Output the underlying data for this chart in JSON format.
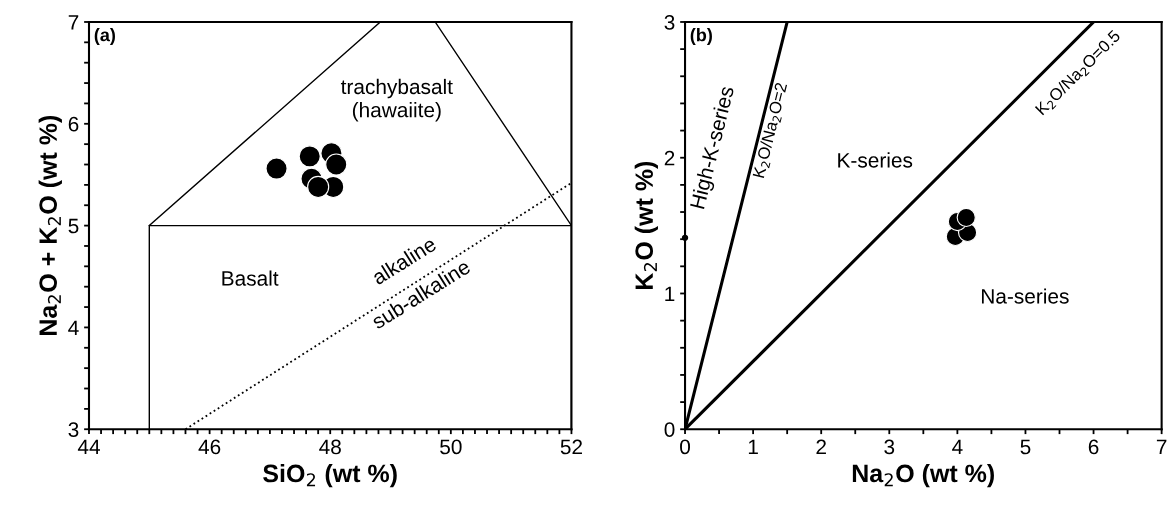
{
  "chart_data": [
    {
      "type": "scatter",
      "xlabel": "SiO$_{2}$ (wt %)",
      "ylabel": "Na$_{2}$O + K$_{2}$O (wt %)",
      "xlim": [
        44,
        52
      ],
      "ylim": [
        3,
        7
      ],
      "xticks": [
        44,
        {
          "value": 44.2,
          "label": null
        },
        {
          "value": 44.4,
          "label": null
        },
        {
          "value": 44.6,
          "label": null
        },
        {
          "value": 44.8,
          "label": null
        },
        {
          "value": 45,
          "label": null
        },
        {
          "value": 45.2,
          "label": null
        },
        {
          "value": 45.4,
          "label": null
        },
        {
          "value": 45.6,
          "label": null
        },
        {
          "value": 45.8,
          "label": null
        },
        46,
        {
          "value": 46.2,
          "label": null
        },
        {
          "value": 46.4,
          "label": null
        },
        {
          "value": 46.6,
          "label": null
        },
        {
          "value": 46.8,
          "label": null
        },
        {
          "value": 47,
          "label": null
        },
        {
          "value": 47.2,
          "label": null
        },
        {
          "value": 47.4,
          "label": null
        },
        {
          "value": 47.6,
          "label": null
        },
        {
          "value": 47.8,
          "label": null
        },
        48,
        {
          "value": 48.2,
          "label": null
        },
        {
          "value": 48.4,
          "label": null
        },
        {
          "value": 48.6,
          "label": null
        },
        {
          "value": 48.8,
          "label": null
        },
        {
          "value": 49,
          "label": null
        },
        {
          "value": 49.2,
          "label": null
        },
        {
          "value": 49.4,
          "label": null
        },
        {
          "value": 49.6,
          "label": null
        },
        {
          "value": 49.8,
          "label": null
        },
        50,
        {
          "value": 50.2,
          "label": null
        },
        {
          "value": 50.4,
          "label": null
        },
        {
          "value": 50.6,
          "label": null
        },
        {
          "value": 50.8,
          "label": null
        },
        {
          "value": 51,
          "label": null
        },
        {
          "value": 51.2,
          "label": null
        },
        {
          "value": 51.4,
          "label": null
        },
        {
          "value": 51.6,
          "label": null
        },
        {
          "value": 51.8,
          "label": null
        },
        52
      ],
      "yticks": [
        3,
        {
          "value": 3.2,
          "label": null
        },
        {
          "value": 3.4,
          "label": null
        },
        {
          "value": 3.6,
          "label": null
        },
        {
          "value": 3.8,
          "label": null
        },
        4,
        {
          "value": 4.2,
          "label": null
        },
        {
          "value": 4.4,
          "label": null
        },
        {
          "value": 4.6,
          "label": null
        },
        {
          "value": 4.8,
          "label": null
        },
        5,
        {
          "value": 5.2,
          "label": null
        },
        {
          "value": 5.4,
          "label": null
        },
        {
          "value": 5.6,
          "label": null
        },
        {
          "value": 5.8,
          "label": null
        },
        6,
        {
          "value": 6.2,
          "label": null
        },
        {
          "value": 6.4,
          "label": null
        },
        {
          "value": 6.6,
          "label": null
        },
        {
          "value": 6.8,
          "label": null
        },
        7
      ],
      "series": [
        {
          "type": "line",
          "color": "#000000",
          "line_style": "solid",
          "x": [
            45,
            45,
            52,
            52
          ],
          "values": [
            3,
            5,
            5,
            3
          ]
        },
        {
          "type": "line",
          "color": "#000000",
          "line_style": "solid",
          "x": [
            45,
            48.83,
            49.74,
            52
          ],
          "values": [
            5,
            7,
            7,
            5
          ]
        },
        {
          "type": "line",
          "color": "#000000",
          "line_style": "dotted",
          "x": [
            45.6,
            52
          ],
          "values": [
            3,
            5.42
          ]
        },
        {
          "color": "#000000",
          "marker": "circle",
          "x": [
            47.11,
            47.66,
            48.02,
            48.1,
            47.69,
            48.05,
            47.8
          ],
          "values": [
            5.56,
            5.68,
            5.71,
            5.6,
            5.46,
            5.38,
            5.38
          ]
        }
      ],
      "annotations": [
        "(a)",
        "trachybasalt\n(hawaiite)",
        "Basalt",
        "alkaline",
        "sub-alkaline"
      ]
    },
    {
      "type": "scatter",
      "xlabel": "Na$_{2}$O (wt %)",
      "ylabel": "K$_{2}$O (wt %)",
      "xlim": [
        0,
        7
      ],
      "ylim": [
        0,
        3
      ],
      "xticks": [
        0,
        {
          "value": 0.5,
          "label": null
        },
        1,
        {
          "value": 1.5,
          "label": null
        },
        2,
        {
          "value": 2.5,
          "label": null
        },
        3,
        {
          "value": 3.5,
          "label": null
        },
        4,
        {
          "value": 4.5,
          "label": null
        },
        5,
        {
          "value": 5.5,
          "label": null
        },
        6,
        {
          "value": 6.5,
          "label": null
        },
        7
      ],
      "yticks": [
        0,
        {
          "value": 0.2,
          "label": null
        },
        {
          "value": 0.4,
          "label": null
        },
        {
          "value": 0.6,
          "label": null
        },
        {
          "value": 0.8,
          "label": null
        },
        1,
        {
          "value": 1.2,
          "label": null
        },
        {
          "value": 1.4,
          "label": null
        },
        {
          "value": 1.6,
          "label": null
        },
        {
          "value": 1.8,
          "label": null
        },
        2,
        {
          "value": 2.2,
          "label": null
        },
        {
          "value": 2.4,
          "label": null
        },
        {
          "value": 2.6,
          "label": null
        },
        {
          "value": 2.8,
          "label": null
        },
        3
      ],
      "series": [
        {
          "type": "line",
          "color": "#000000",
          "line_style": "solid",
          "x": [
            0,
            1.5
          ],
          "values": [
            0,
            3
          ]
        },
        {
          "type": "line",
          "color": "#000000",
          "line_style": "solid",
          "x": [
            0,
            6
          ],
          "values": [
            0,
            3
          ]
        },
        {
          "color": "#000000",
          "marker": "circle",
          "x": [
            3.97,
            4.15,
            4.0,
            4.13
          ],
          "values": [
            1.42,
            1.45,
            1.53,
            1.56
          ]
        },
        {
          "color": "#000000",
          "marker": "circle",
          "x": [
            0
          ],
          "values": [
            1.41
          ]
        }
      ],
      "annotations": [
        "(b)",
        "High-K-series",
        "K$_{2}$O/Na$_{2}$O=2",
        "K-series",
        "K$_{2}$O/Na$_{2}$O=0.5",
        "Na-series"
      ]
    }
  ]
}
